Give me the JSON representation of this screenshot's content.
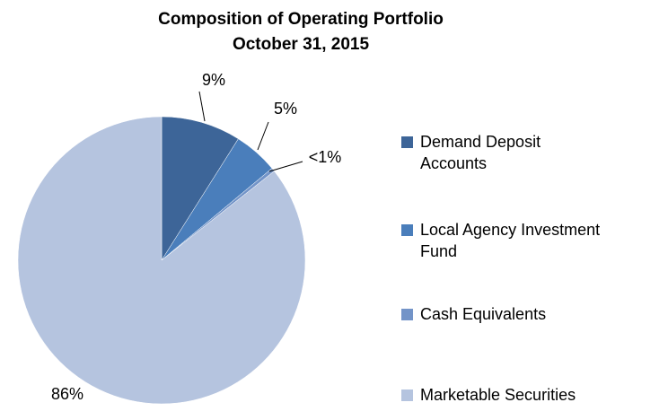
{
  "chart_data": {
    "type": "pie",
    "title": "Composition of Operating Portfolio",
    "subtitle": "October 31, 2015",
    "categories": [
      "Demand Deposit Accounts",
      "Local Agency Investment Fund",
      "Cash Equivalents",
      "Marketable Securities"
    ],
    "values": [
      9,
      5,
      0.4,
      86
    ],
    "value_labels": [
      "9%",
      "5%",
      "<1%",
      "86%"
    ],
    "colors": [
      "#3d6598",
      "#4a7ebb",
      "#7394c8",
      "#b5c4df"
    ],
    "legend": "right"
  }
}
